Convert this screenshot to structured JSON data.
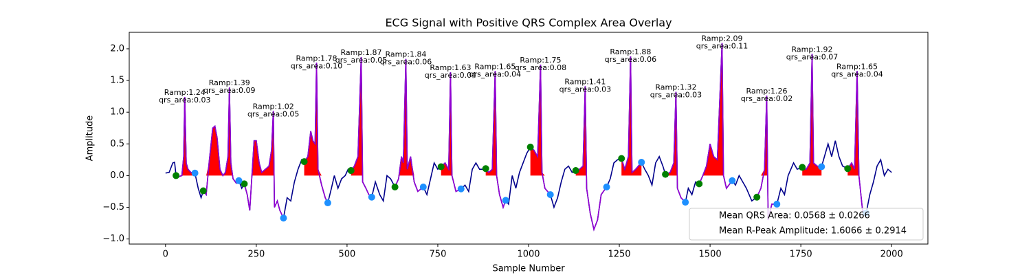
{
  "chart_data": {
    "type": "ecg",
    "title": "ECG Signal with Positive QRS Complex Area Overlay",
    "xlabel": "Sample Number",
    "ylabel": "Amplitude",
    "xlim": [
      -100,
      2100
    ],
    "ylim": [
      -1.08,
      2.26
    ],
    "xticks": [
      0,
      250,
      500,
      750,
      1000,
      1250,
      1500,
      1750,
      2000
    ],
    "yticks": [
      {
        "value": -1,
        "label": "−1.0"
      },
      {
        "value": -0.5,
        "label": "−0.5"
      },
      {
        "value": 0,
        "label": "0.0"
      },
      {
        "value": 0.5,
        "label": "0.5"
      },
      {
        "value": 1,
        "label": "1.0"
      },
      {
        "value": 1.5,
        "label": "1.5"
      },
      {
        "value": 2,
        "label": "2.0"
      }
    ],
    "line_color": "#00008b",
    "qrs_line_color": "#9400d3",
    "area_color": "#ff0000",
    "x": [
      0,
      10,
      20,
      25,
      29,
      35,
      45,
      50,
      53,
      57,
      62,
      70,
      81,
      90,
      98,
      104,
      112,
      120,
      130,
      136,
      142,
      150,
      158,
      165,
      172,
      176,
      180,
      186,
      195,
      202,
      210,
      217,
      225,
      232,
      238,
      244,
      250,
      258,
      265,
      275,
      285,
      292,
      297,
      300,
      308,
      315,
      325,
      335,
      345,
      355,
      365,
      375,
      382,
      392,
      400,
      406,
      412,
      416,
      420,
      430,
      440,
      447,
      457,
      465,
      475,
      485,
      495,
      503,
      511,
      520,
      530,
      539,
      543,
      552,
      560,
      568,
      578,
      590,
      600,
      610,
      620,
      632,
      642,
      650,
      655,
      662,
      666,
      675,
      685,
      695,
      710,
      720,
      730,
      740,
      750,
      759,
      770,
      780,
      785,
      789,
      800,
      814,
      825,
      835,
      845,
      855,
      865,
      875,
      882,
      890,
      900,
      908,
      912,
      920,
      930,
      937,
      945,
      955,
      965,
      975,
      985,
      995,
      1005,
      1015,
      1025,
      1033,
      1037,
      1045,
      1060,
      1070,
      1080,
      1090,
      1100,
      1110,
      1120,
      1130,
      1140,
      1150,
      1156,
      1160,
      1170,
      1180,
      1190,
      1200,
      1215,
      1225,
      1235,
      1245,
      1256,
      1265,
      1275,
      1281,
      1285,
      1295,
      1311,
      1320,
      1330,
      1340,
      1350,
      1360,
      1370,
      1377,
      1390,
      1400,
      1406,
      1410,
      1420,
      1432,
      1440,
      1450,
      1460,
      1470,
      1480,
      1490,
      1500,
      1510,
      1520,
      1533,
      1537,
      1545,
      1561,
      1570,
      1580,
      1590,
      1600,
      1615,
      1629,
      1640,
      1650,
      1656,
      1660,
      1670,
      1684,
      1695,
      1705,
      1715,
      1730,
      1740,
      1754,
      1765,
      1775,
      1781,
      1785,
      1795,
      1807,
      1815,
      1825,
      1835,
      1845,
      1855,
      1865,
      1879,
      1890,
      1898,
      1905,
      1910,
      1920,
      1930,
      1940,
      1950,
      1960,
      1970,
      1980,
      1990,
      2000
    ],
    "values": [
      0.04,
      0.05,
      0.2,
      0.21,
      0,
      -0.02,
      0,
      0.3,
      1.24,
      0.2,
      0.1,
      0.05,
      0.04,
      -0.2,
      -0.35,
      -0.24,
      -0.3,
      0.2,
      0.75,
      0.78,
      0.6,
      0.1,
      0,
      0.05,
      0.3,
      1.39,
      0.2,
      -0.05,
      -0.12,
      -0.08,
      -0.2,
      -0.13,
      -0.3,
      -0.55,
      0,
      0.55,
      0.55,
      0.2,
      0.05,
      0.1,
      0.15,
      0.4,
      1.02,
      -0.5,
      -0.4,
      -0.55,
      -0.67,
      -0.35,
      -0.4,
      -0.1,
      0.1,
      0.25,
      0.22,
      0.3,
      0.7,
      0.55,
      0.5,
      1.78,
      0.1,
      -0.15,
      -0.35,
      -0.43,
      -0.2,
      0,
      -0.2,
      -0.05,
      0,
      0.1,
      0.08,
      0.15,
      0.3,
      1.87,
      -0.1,
      -0.2,
      -0.3,
      -0.34,
      -0.1,
      -0.3,
      -0.4,
      0,
      -0.05,
      -0.18,
      -0.05,
      0.3,
      0.2,
      1.84,
      0.1,
      0.3,
      -0.1,
      -0.25,
      -0.18,
      -0.3,
      -0.05,
      0.2,
      0.1,
      0.14,
      0.2,
      0.1,
      1.63,
      0,
      -0.25,
      -0.21,
      -0.15,
      -0.25,
      0.1,
      0.2,
      0.1,
      0.1,
      0.11,
      0.05,
      0.1,
      1.65,
      0,
      -0.3,
      -0.5,
      -0.39,
      -0.45,
      0,
      -0.2,
      0.05,
      0.2,
      0.35,
      0.45,
      0.4,
      0.3,
      1.75,
      0.05,
      -0.2,
      -0.3,
      -0.5,
      -0.35,
      -0.1,
      0.1,
      0.15,
      0.05,
      0.08,
      0.1,
      0.15,
      1.41,
      -0.2,
      -0.6,
      -0.85,
      -0.7,
      -0.3,
      -0.18,
      -0.05,
      0.2,
      0.25,
      0.27,
      0.1,
      0.3,
      1.88,
      0.05,
      0.1,
      0.21,
      0.1,
      0,
      -0.15,
      0.2,
      0.3,
      0.15,
      0.02,
      0.05,
      0.2,
      1.32,
      -0.2,
      -0.35,
      -0.42,
      -0.2,
      -0.3,
      -0.1,
      -0.13,
      0,
      0.15,
      0.5,
      0.3,
      0.25,
      2.09,
      0,
      -0.2,
      -0.08,
      -0.15,
      0,
      -0.1,
      -0.2,
      -0.4,
      -0.34,
      -0.2,
      0.1,
      1.26,
      -0.7,
      -0.45,
      -0.45,
      -0.2,
      -0.3,
      0,
      0.2,
      0.1,
      0.13,
      0.1,
      0.2,
      1.92,
      0.2,
      0.15,
      0.14,
      0.3,
      0.5,
      0.3,
      0.55,
      0.3,
      0.15,
      0.11,
      0.2,
      0.1,
      1.65,
      0,
      -0.55,
      -0.59,
      -0.3,
      -0.1,
      0.15,
      0.25,
      0,
      0.1,
      0.05
    ],
    "r_peaks": {
      "x": [
        53,
        176,
        297,
        416,
        539,
        662,
        785,
        908,
        1033,
        1156,
        1281,
        1406,
        1533,
        1656,
        1781,
        1905
      ],
      "values": [
        1.24,
        1.39,
        1.02,
        1.78,
        1.87,
        1.84,
        1.63,
        1.65,
        1.75,
        1.41,
        1.88,
        1.32,
        2.09,
        1.26,
        1.92,
        1.65
      ],
      "qrs_areas": [
        0.03,
        0.09,
        0.05,
        0.1,
        0.05,
        0.06,
        0.04,
        0.04,
        0.08,
        0.03,
        0.06,
        0.03,
        0.11,
        0.02,
        0.07,
        0.04
      ],
      "labels": [
        "Ramp:1.24",
        "Ramp:1.39",
        "Ramp:1.02",
        "Ramp:1.78",
        "Ramp:1.87",
        "Ramp:1.84",
        "Ramp:1.63",
        "Ramp:1.65",
        "Ramp:1.75",
        "Ramp:1.41",
        "Ramp:1.88",
        "Ramp:1.32",
        "Ramp:2.09",
        "Ramp:1.26",
        "Ramp:1.92",
        "Ramp:1.65"
      ],
      "qrs_labels": [
        "qrs_area:0.03",
        "qrs_area:0.09",
        "qrs_area:0.05",
        "qrs_area:0.10",
        "qrs_area:0.05",
        "qrs_area:0.06",
        "qrs_area:0.04",
        "qrs_area:0.04",
        "qrs_area:0.08",
        "qrs_area:0.03",
        "qrs_area:0.06",
        "qrs_area:0.03",
        "qrs_area:0.11",
        "qrs_area:0.02",
        "qrs_area:0.07",
        "qrs_area:0.04"
      ]
    },
    "onset_points": {
      "color": "#008000",
      "x": [
        29,
        104,
        217,
        382,
        511,
        632,
        759,
        882,
        1005,
        1130,
        1256,
        1377,
        1470,
        1629,
        1754,
        1879
      ],
      "values": [
        0,
        -0.24,
        -0.13,
        0.22,
        0.08,
        -0.18,
        0.14,
        0.11,
        0.45,
        0.08,
        0.27,
        0.02,
        -0.13,
        -0.34,
        0.13,
        0.11
      ]
    },
    "offset_points": {
      "color": "#1e90ff",
      "x": [
        81,
        202,
        325,
        447,
        568,
        710,
        814,
        937,
        1060,
        1215,
        1311,
        1432,
        1561,
        1684,
        1807,
        1930
      ],
      "values": [
        0.04,
        -0.08,
        -0.67,
        -0.43,
        -0.34,
        -0.18,
        -0.21,
        -0.39,
        -0.3,
        -0.18,
        0.21,
        -0.42,
        -0.08,
        -0.45,
        0.14,
        -0.59
      ]
    },
    "legend_texts": [
      "Mean QRS Area: 0.0568 ± 0.0266",
      "Mean R-Peak Amplitude: 1.6066 ± 0.2914"
    ]
  }
}
